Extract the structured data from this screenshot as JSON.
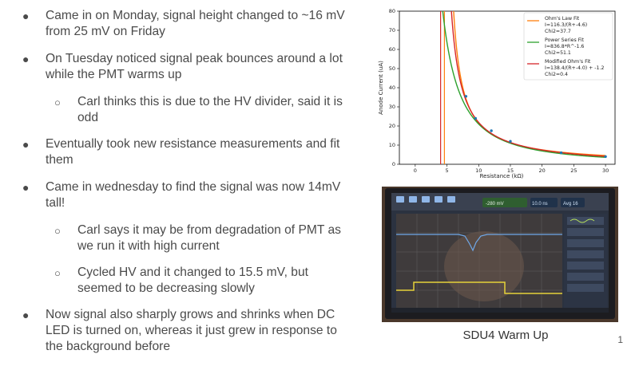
{
  "bullets": [
    {
      "level": 1,
      "text": "Came in on Monday, signal height changed to ~16 mV from 25 mV on Friday"
    },
    {
      "level": 1,
      "text": "On Tuesday noticed signal peak bounces around a lot while the PMT warms up"
    },
    {
      "level": 2,
      "text": "Carl thinks this is due to the HV divider, said it is odd"
    },
    {
      "level": 1,
      "text": "Eventually took new resistance measurements and fit them"
    },
    {
      "level": 1,
      "text": "Came in wednesday to find the signal was now 14mV tall!"
    },
    {
      "level": 2,
      "text": "Carl says it may be from degradation of PMT as we run it with high current"
    },
    {
      "level": 2,
      "text": "Cycled HV and it changed to 15.5 mV, but seemed to be decreasing slowly"
    },
    {
      "level": 1,
      "text": "Now signal also sharply grows and shrinks when DC LED is turned on, whereas it just grew in response to the background before"
    }
  ],
  "markers": {
    "level1": "●",
    "level2": "○"
  },
  "chart_data": {
    "type": "line",
    "xlabel": "Resistance (kΩ)",
    "ylabel": "Anode Current (uA)",
    "xlim": [
      -2.5,
      31.5
    ],
    "ylim": [
      0,
      80
    ],
    "xticks": [
      0,
      5,
      10,
      15,
      20,
      25,
      30
    ],
    "yticks": [
      0,
      10,
      20,
      30,
      40,
      50,
      60,
      70,
      80
    ],
    "legend_position": "top-right",
    "series": [
      {
        "name": "Ohm's Law Fit",
        "detail": "I=116.3/(R+-4.6)",
        "chi2": "Chi2=37.7",
        "color": "#ff7f0e",
        "model": "ohm",
        "params": [
          116.3,
          -4.6
        ]
      },
      {
        "name": "Power Series Fit",
        "detail": "I=836.8*R^-1.6",
        "chi2": "Chi2=51.1",
        "color": "#2ca02c",
        "model": "power",
        "params": [
          836.8,
          -1.6
        ]
      },
      {
        "name": "Modified Ohm's Fit",
        "detail": "I=138.4/(R+-4.0) + -1.2",
        "chi2": "Chi2=0.4",
        "color": "#d62728",
        "model": "modohm",
        "params": [
          138.4,
          -4.0,
          -1.2
        ]
      }
    ],
    "points": {
      "x": [
        8,
        9.5,
        12,
        15,
        23,
        30
      ],
      "y": [
        35.5,
        24,
        17.5,
        12,
        6,
        4
      ]
    },
    "point_color": "#1f77b4"
  },
  "photo": {
    "screen_readouts": [
      "-280 mV",
      "10.0 ns",
      "Avg 16"
    ]
  },
  "caption": "SDU4 Warm Up",
  "page_number": "1"
}
